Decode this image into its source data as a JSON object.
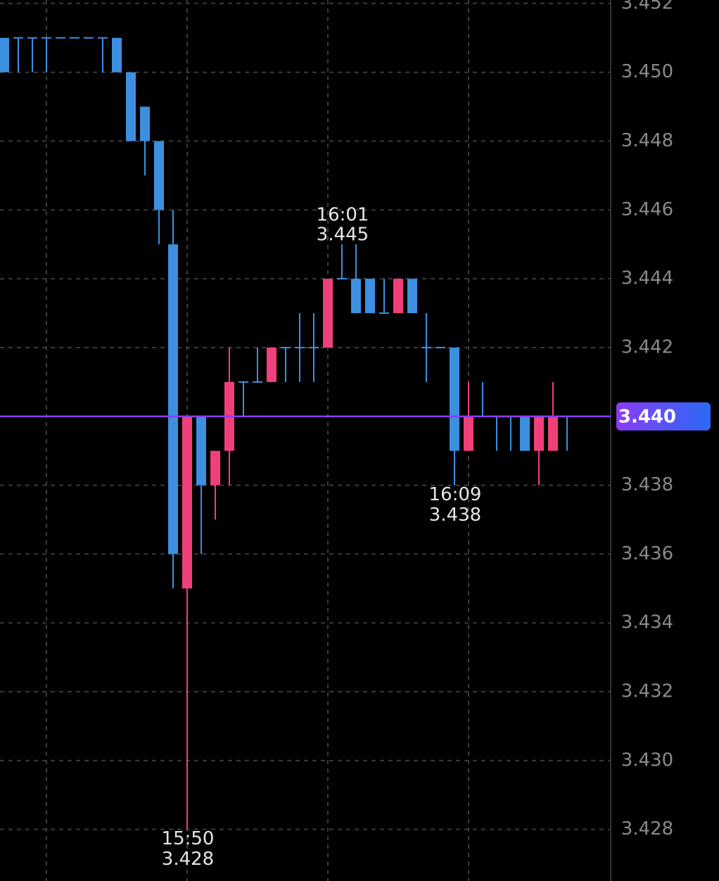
{
  "chart_data": {
    "type": "candlestick",
    "categories": [
      null,
      null,
      null,
      null,
      null,
      null,
      null,
      null,
      null,
      null,
      null,
      null,
      null,
      "15:50",
      null,
      null,
      null,
      null,
      null,
      null,
      null,
      null,
      null,
      null,
      "16:01",
      null,
      null,
      null,
      null,
      null,
      null,
      null,
      "16:09",
      null,
      null,
      null,
      null,
      null,
      null,
      null,
      null
    ],
    "open": [
      3.451,
      3.451,
      3.451,
      3.451,
      3.451,
      3.451,
      3.451,
      3.451,
      3.451,
      3.45,
      3.449,
      3.448,
      3.445,
      3.435,
      3.44,
      3.438,
      3.439,
      3.441,
      3.441,
      3.441,
      3.442,
      3.442,
      3.442,
      3.442,
      3.444,
      3.444,
      3.444,
      3.443,
      3.443,
      3.444,
      3.442,
      3.442,
      3.442,
      3.439,
      3.44,
      3.44,
      3.44,
      3.44,
      3.439,
      3.439,
      3.44
    ],
    "high": [
      3.451,
      3.451,
      3.451,
      3.451,
      3.451,
      3.451,
      3.451,
      3.451,
      3.451,
      3.45,
      3.449,
      3.448,
      3.446,
      3.44,
      3.44,
      3.439,
      3.442,
      3.441,
      3.442,
      3.442,
      3.442,
      3.443,
      3.443,
      3.444,
      3.445,
      3.445,
      3.444,
      3.444,
      3.444,
      3.444,
      3.443,
      3.442,
      3.442,
      3.441,
      3.441,
      3.44,
      3.44,
      3.44,
      3.44,
      3.441,
      3.44
    ],
    "low": [
      3.45,
      3.45,
      3.45,
      3.45,
      3.451,
      3.451,
      3.451,
      3.45,
      3.45,
      3.448,
      3.447,
      3.445,
      3.435,
      3.428,
      3.436,
      3.437,
      3.438,
      3.44,
      3.441,
      3.441,
      3.441,
      3.441,
      3.441,
      3.442,
      3.444,
      3.443,
      3.443,
      3.443,
      3.443,
      3.443,
      3.441,
      3.442,
      3.438,
      3.439,
      3.44,
      3.439,
      3.439,
      3.439,
      3.438,
      3.439,
      3.439
    ],
    "close": [
      3.45,
      3.451,
      3.451,
      3.451,
      3.451,
      3.451,
      3.451,
      3.451,
      3.45,
      3.448,
      3.448,
      3.446,
      3.436,
      3.44,
      3.438,
      3.439,
      3.441,
      3.441,
      3.441,
      3.442,
      3.442,
      3.442,
      3.442,
      3.444,
      3.444,
      3.443,
      3.443,
      3.443,
      3.444,
      3.443,
      3.442,
      3.442,
      3.439,
      3.44,
      3.44,
      3.44,
      3.44,
      3.439,
      3.44,
      3.44,
      3.44
    ],
    "up_color": "#f0407a",
    "down_color": "#3d8fe0",
    "ylim": [
      3.4265,
      3.4521
    ],
    "yticks": [
      3.452,
      {
        "value": 3.45,
        "label": "3.450"
      },
      3.448,
      3.446,
      3.444,
      3.442,
      {
        "value": 3.44,
        "label": "3.440"
      },
      3.438,
      3.436,
      3.434,
      3.432,
      {
        "value": 3.43,
        "label": "3.430"
      },
      3.428
    ],
    "grid": true,
    "last_price": {
      "value": 3.44,
      "label": "3.440",
      "color": "#8b3cf7"
    },
    "annotations": [
      {
        "time": "15:50",
        "value": 3.428
      },
      {
        "time": "16:01",
        "value": 3.445
      },
      {
        "time": "16:09",
        "value": 3.438
      }
    ]
  }
}
